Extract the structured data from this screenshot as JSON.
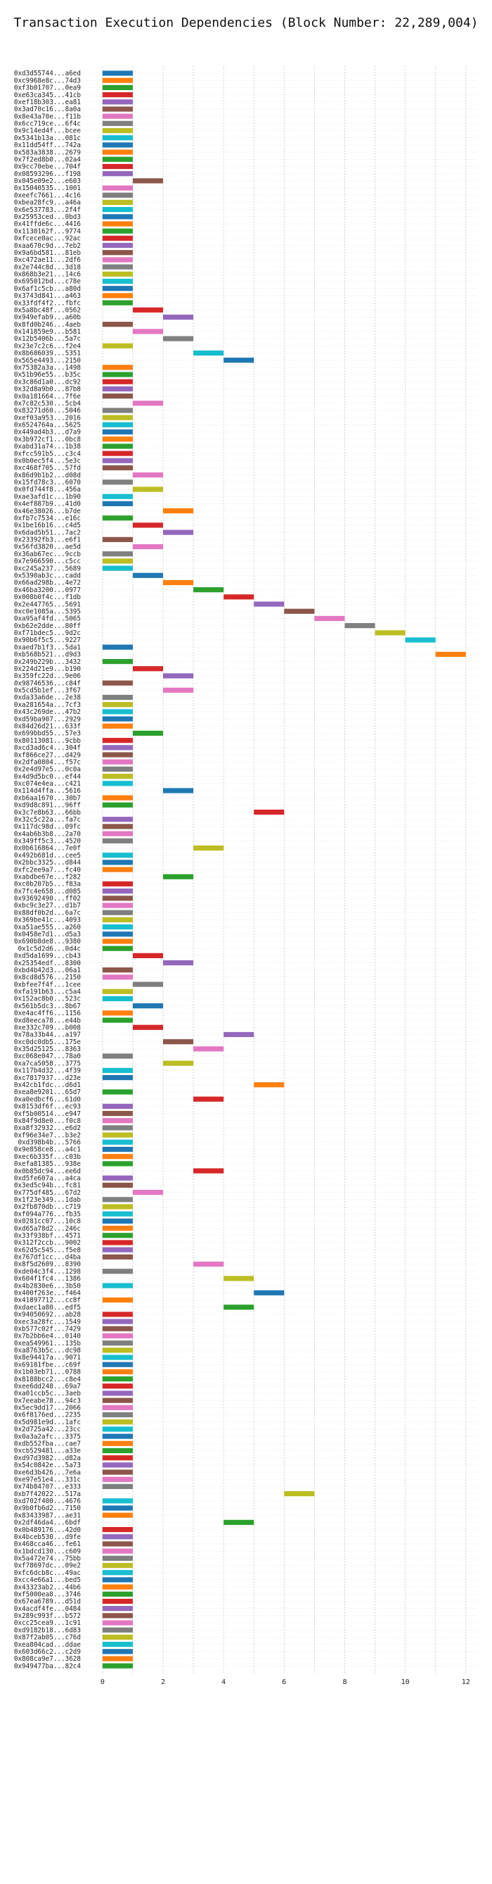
{
  "chart_data": {
    "type": "bar",
    "orientation": "horizontal",
    "subtype": "gantt",
    "title": "Transaction Execution Dependencies (Block Number: 22,289,004)",
    "xlabel": "",
    "ylabel": "",
    "xlim": [
      -0.6,
      12.4
    ],
    "xticks": [
      0,
      2,
      4,
      6,
      8,
      10,
      12
    ],
    "grid": true,
    "bar_duration": 1,
    "palette": [
      "#1f77b4",
      "#ff7f0e",
      "#2ca02c",
      "#d62728",
      "#9467bd",
      "#8c564b",
      "#e377c2",
      "#7f7f7f",
      "#bcbd22",
      "#17becf"
    ],
    "transactions": [
      [
        "0xd3d55744...a6ed",
        0
      ],
      [
        "0xc9968e8c...74d3",
        0
      ],
      [
        "0xf3b01707...0ea9",
        0
      ],
      [
        "0xe63ca345...41cb",
        0
      ],
      [
        "0xef18b303...ea81",
        0
      ],
      [
        "0x3ad70c16...8a0a",
        0
      ],
      [
        "0x8e43a70e...f11b",
        0
      ],
      [
        "0x6cc719ce...6f4c",
        0
      ],
      [
        "0x9c14ed4f...bcee",
        0
      ],
      [
        "0x5341b13a...081c",
        0
      ],
      [
        "0x11dd54ff...742a",
        0
      ],
      [
        "0x583a3838...2679",
        0
      ],
      [
        "0x7f2ed8b0...02a4",
        0
      ],
      [
        "0x9cc70ebe...704f",
        0
      ],
      [
        "0x08593296...f198",
        0
      ],
      [
        "0x045e09e2...e603",
        1
      ],
      [
        "0x15040535...1001",
        0
      ],
      [
        "0xeefc7661...4c16",
        0
      ],
      [
        "0xbea28fc9...a46a",
        0
      ],
      [
        "0x6e537783...2f4f",
        0
      ],
      [
        "0x25953ced...0bd3",
        0
      ],
      [
        "0x41ffde6c...4416",
        0
      ],
      [
        "0x1130162f...9774",
        0
      ],
      [
        "0xfcece0ac...92ac",
        0
      ],
      [
        "0xaa670c9d...7eb2",
        0
      ],
      [
        "0x9a6bd581...81eb",
        0
      ],
      [
        "0xc472ae11...2df6",
        0
      ],
      [
        "0x2e744c8d...3d18",
        0
      ],
      [
        "0x868b3e21...14c6",
        0
      ],
      [
        "0x695012bd...c78e",
        0
      ],
      [
        "0x6af1c5cb...a80d",
        0
      ],
      [
        "0x3743d841...a463",
        0
      ],
      [
        "0x33fdf4f2...fbfc",
        0
      ],
      [
        "0x5a8bc48f...0562",
        1
      ],
      [
        "0x949efab9...a60b",
        2
      ],
      [
        "0x8fd0b246...4aeb",
        0
      ],
      [
        "0x141859e9...b581",
        1
      ],
      [
        "0x12b5406b...5a7c",
        2
      ],
      [
        "0x23e7c2c6...f2e4",
        0
      ],
      [
        "0x8b686039...5351",
        3
      ],
      [
        "0x565e4493...2150",
        4
      ],
      [
        "0x75382a3a...1498",
        0
      ],
      [
        "0x51b96e55...b35c",
        0
      ],
      [
        "0x3c86d1a0...dc92",
        0
      ],
      [
        "0x32d8a9b0...87b8",
        0
      ],
      [
        "0x0a181664...7f6e",
        0
      ],
      [
        "0x7c82c530...5cb4",
        1
      ],
      [
        "0x83271d60...5046",
        0
      ],
      [
        "0xef03a953...2016",
        0
      ],
      [
        "0x6524764a...5625",
        0
      ],
      [
        "0x449ad4b3...d7a9",
        0
      ],
      [
        "0x3b972cf1...0bc8",
        0
      ],
      [
        "0xabd31a74...1b38",
        0
      ],
      [
        "0xfcc591b5...c3c4",
        0
      ],
      [
        "0x0b0ec5f4...5e3c",
        0
      ],
      [
        "0xc468f705...57fd",
        0
      ],
      [
        "0x86d9b1b2...d08d",
        1
      ],
      [
        "0x15fd78c3...6070",
        0
      ],
      [
        "0x0fd744f8...456a",
        1
      ],
      [
        "0xae3afd1c...1b90",
        0
      ],
      [
        "0x4ef887b9...41d0",
        0
      ],
      [
        "0x46e38026...b7de",
        2
      ],
      [
        "0xfb7c7534...e16c",
        0
      ],
      [
        "0x1be16b16...c4d5",
        1
      ],
      [
        "0x6dad5b51...7ac2",
        2
      ],
      [
        "0x23392fb3...e6f1",
        0
      ],
      [
        "0x56fd3820...ae5d",
        1
      ],
      [
        "0x36ab67ec...9ccb",
        0
      ],
      [
        "0x7e966590...c5cc",
        0
      ],
      [
        "0xc245a237...5689",
        0
      ],
      [
        "0x5390ab3c...cadd",
        1
      ],
      [
        "0x66ad298b...4e72",
        2
      ],
      [
        "0x46ba3200...0977",
        3
      ],
      [
        "0x008b0f4c...f1db",
        4
      ],
      [
        "0x2e447765...5691",
        5
      ],
      [
        "0xc0e1085a...5395",
        6
      ],
      [
        "0xa95af4fd...5065",
        7
      ],
      [
        "0xb62e2dde...80ff",
        8
      ],
      [
        "0xf71bdec5...9d2c",
        9
      ],
      [
        "0x90b6f5c5...9227",
        10
      ],
      [
        "0xaed7b1f3...5da1",
        0
      ],
      [
        "0xb568b521...d9d3",
        11
      ],
      [
        "0x249b229b...3432",
        0
      ],
      [
        "0x224d21e9...b190",
        1
      ],
      [
        "0x359fc22d...9e06",
        2
      ],
      [
        "0x98746536...c84f",
        0
      ],
      [
        "0x5cd5b1ef...3f67",
        2
      ],
      [
        "0xda33a6de...2e38",
        0
      ],
      [
        "0xa281654a...7cf3",
        0
      ],
      [
        "0x43c269de...47b2",
        0
      ],
      [
        "0xd59ba907...2929",
        0
      ],
      [
        "0x84d26d21...633f",
        0
      ],
      [
        "0x699bbd55...57e3",
        1
      ],
      [
        "0x80113081...9cbb",
        0
      ],
      [
        "0xcd3ad6c4...304f",
        0
      ],
      [
        "0xf866ce27...d429",
        0
      ],
      [
        "0x2dfa0804...f57c",
        0
      ],
      [
        "0x2e4d97e5...0c0a",
        0
      ],
      [
        "0x4d9d5bc0...ef44",
        0
      ],
      [
        "0xc074e4ea...c421",
        0
      ],
      [
        "0x114d4ffa...5616",
        2
      ],
      [
        "0xb6aa1670...30b7",
        0
      ],
      [
        "0xd9d8c891...96ff",
        0
      ],
      [
        "0x3c7e8b63...66bb",
        5
      ],
      [
        "0x32c5c22a...fa7c",
        0
      ],
      [
        "0x117dc98d...09fc",
        0
      ],
      [
        "0x4ab6b3b8...2a70",
        0
      ],
      [
        "0x349ff5c3...4520",
        0
      ],
      [
        "0x0b616864...7e0f",
        3
      ],
      [
        "0x492b681d...cee5",
        0
      ],
      [
        "0x2bbc3325...d844",
        0
      ],
      [
        "0xfc2ee9a7...fc40",
        0
      ],
      [
        "0xabdbe67e...f282",
        2
      ],
      [
        "0xc0b207b5...f83a",
        0
      ],
      [
        "0x7fc4e658...d085",
        0
      ],
      [
        "0x93692490...ff02",
        0
      ],
      [
        "0xbc9c3e27...d1b7",
        0
      ],
      [
        "0x88df0b2d...6a7c",
        0
      ],
      [
        "0x369be41c...4093",
        0
      ],
      [
        "0xa51ae555...a260",
        0
      ],
      [
        "0x0458e7d1...d5a3",
        0
      ],
      [
        "0x690b8de8...9380",
        0
      ],
      [
        "0x1c5d2d6...0d4c",
        0
      ],
      [
        "0xd5da1699...cb43",
        1
      ],
      [
        "0x25354edf...8300",
        2
      ],
      [
        "0xbd4b42d3...06a1",
        0
      ],
      [
        "0x8cd8d576...2150",
        0
      ],
      [
        "0xbfee7f4f...1cee",
        1
      ],
      [
        "0xfa191b63...c5a4",
        0
      ],
      [
        "0x152ac8b0...523c",
        0
      ],
      [
        "0x561b5dc3...8b67",
        1
      ],
      [
        "0xe4ac4ff6...1156",
        0
      ],
      [
        "0xd8eeca78...e44b",
        0
      ],
      [
        "0xe332c709...b008",
        1
      ],
      [
        "0x78a33b44...a197",
        4
      ],
      [
        "0xc0dc0db5...175e",
        2
      ],
      [
        "0x35d25125...8363",
        3
      ],
      [
        "0xc068e047...78a0",
        0
      ],
      [
        "0xa7ca5058...3775",
        2
      ],
      [
        "0x117b4d32...4f39",
        0
      ],
      [
        "0xc7817937...d23e",
        0
      ],
      [
        "0x42cb1fdc...d6d1",
        5
      ],
      [
        "0xea8e9201...65d7",
        0
      ],
      [
        "0xa0edbcf6...61d0",
        3
      ],
      [
        "0x8153df6f...ec93",
        0
      ],
      [
        "0xf5b00514...e947",
        0
      ],
      [
        "0x84f9d8e0...f0c8",
        0
      ],
      [
        "0xa8f32932...e6d2",
        0
      ],
      [
        "0xf96e34e7...b3e2",
        0
      ],
      [
        "0xd398b4b...5766",
        0
      ],
      [
        "0x9e858ce8...a4c1",
        0
      ],
      [
        "0xec6b335f...c03b",
        0
      ],
      [
        "0xefa81385...938e",
        0
      ],
      [
        "0x0b85dc94...ee6d",
        3
      ],
      [
        "0xd5fe607a...a4ca",
        0
      ],
      [
        "0x3ed5c94b...fc81",
        0
      ],
      [
        "0x775df485...67d2",
        1
      ],
      [
        "0x1f23e349...1dab",
        0
      ],
      [
        "0x2fb870db...c719",
        0
      ],
      [
        "0xf094a776...fb35",
        0
      ],
      [
        "0x0281cc07...10c8",
        0
      ],
      [
        "0xd65a78d2...246c",
        0
      ],
      [
        "0x33f938bf...4571",
        0
      ],
      [
        "0x312f2ccb...9002",
        0
      ],
      [
        "0x62d5c545...f5e8",
        0
      ],
      [
        "0x767df1cc...d4ba",
        0
      ],
      [
        "0x8f5d2609...8390",
        3
      ],
      [
        "0xde04c3f4...1298",
        0
      ],
      [
        "0x604f1fc4...1386",
        4
      ],
      [
        "0x4b2830e6...3b50",
        0
      ],
      [
        "0x400f263e...f464",
        5
      ],
      [
        "0x41897712...cc8f",
        0
      ],
      [
        "0xdaec1a80...edf5",
        4
      ],
      [
        "0x94050692...ab28",
        0
      ],
      [
        "0xec3a28fc...1549",
        0
      ],
      [
        "0xb577c02f...7429",
        0
      ],
      [
        "0x7b2bb6e4...0140",
        0
      ],
      [
        "0xea549961...135b",
        0
      ],
      [
        "0xa8763b5c...dc98",
        0
      ],
      [
        "0x8e94417a...9071",
        0
      ],
      [
        "0x69181fbe...c69f",
        0
      ],
      [
        "0x1b03eb71...0788",
        0
      ],
      [
        "0x8188bcc2...c8e4",
        0
      ],
      [
        "0xee6dd248...69a7",
        0
      ],
      [
        "0xa01ccb5c...3aeb",
        0
      ],
      [
        "0x7eeabe78...94c3",
        0
      ],
      [
        "0x5ec9dd17...2066",
        0
      ],
      [
        "0x6f8176ed...2235",
        0
      ],
      [
        "0x5d981e9d...1afc",
        0
      ],
      [
        "0x2d725a42...23cc",
        0
      ],
      [
        "0x0a3a2afc...3375",
        0
      ],
      [
        "0xdb552fba...cae7",
        0
      ],
      [
        "0xcb529481...a33e",
        0
      ],
      [
        "0xd97d3982...d82a",
        0
      ],
      [
        "0x54c0842e...5a73",
        0
      ],
      [
        "0xe6d3b426...7e6a",
        0
      ],
      [
        "0xe97e51e4...331c",
        0
      ],
      [
        "0x74b84707...e333",
        0
      ],
      [
        "0xb7f42022...517a",
        6
      ],
      [
        "0xd702f400...4676",
        0
      ],
      [
        "0x9b0fb6d2...7150",
        0
      ],
      [
        "0x83433987...ae31",
        0
      ],
      [
        "0x2df46da4...6bdf",
        4
      ],
      [
        "0x0b489176...42d0",
        0
      ],
      [
        "0x4bceb530...d9fe",
        0
      ],
      [
        "0x468cca46...fe61",
        0
      ],
      [
        "0x1bdcd130...c609",
        0
      ],
      [
        "0x5a472e74...75bb",
        0
      ],
      [
        "0xf78697dc...09e2",
        0
      ],
      [
        "0xfc6dcb8c...49ac",
        0
      ],
      [
        "0xcc4e66a1...bed5",
        0
      ],
      [
        "0x43323ab2...44b6",
        0
      ],
      [
        "0xf5000ea8...3746",
        0
      ],
      [
        "0x67ea6789...d51d",
        0
      ],
      [
        "0x4acdf4fe...0484",
        0
      ],
      [
        "0x289c993f...b572",
        0
      ],
      [
        "0xcc25cea9...1c91",
        0
      ],
      [
        "0xd9182b18...6d83",
        0
      ],
      [
        "0x87f2ab05...c76d",
        0
      ],
      [
        "0xea804cad...ddae",
        0
      ],
      [
        "0x603d66c2...c2d9",
        0
      ],
      [
        "0x808ca9e7...3628",
        0
      ],
      [
        "0x949477ba...82c4",
        0
      ]
    ]
  }
}
